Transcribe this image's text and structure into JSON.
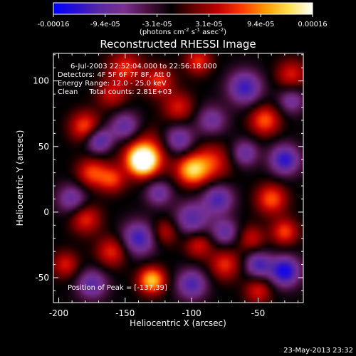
{
  "colorbar": {
    "ticks": [
      "-0.00016",
      "-9.4e-05",
      "-3.1e-05",
      "3.1e-05",
      "9.4e-05",
      "0.00016"
    ],
    "units_prefix": "(photons cm",
    "units_exp1": "-2",
    "units_mid": " s",
    "units_exp2": "-1",
    "units_mid2": " asec",
    "units_exp3": "-2",
    "units_suffix": ")",
    "stops": [
      "#0000ff",
      "#2a0fd0",
      "#5a2aa0",
      "#7a3090",
      "#4a1040",
      "#000000",
      "#6a0000",
      "#c00000",
      "#ff3a00",
      "#ff9a00",
      "#ffe050",
      "#ffffff"
    ]
  },
  "chart_data": {
    "type": "heatmap",
    "title": "Reconstructed RHESSI Image",
    "xlabel": "Heliocentric X (arcsec)",
    "ylabel": "Heliocentric Y (arcsec)",
    "xlim": [
      -204,
      -16
    ],
    "ylim": [
      -69,
      121
    ],
    "x_ticks": [
      -200,
      -150,
      -100,
      -50
    ],
    "y_ticks": [
      -50,
      0,
      50,
      100
    ],
    "blobs": [
      {
        "x": -137,
        "y": 39,
        "v": 1.0,
        "s": 7
      },
      {
        "x": -135,
        "y": 44,
        "v": 0.55,
        "s": 12
      },
      {
        "x": -100,
        "y": 32,
        "v": 0.75,
        "s": 8
      },
      {
        "x": -85,
        "y": 38,
        "v": 0.45,
        "s": 10
      },
      {
        "x": -130,
        "y": -52,
        "v": 0.8,
        "s": 7
      },
      {
        "x": -180,
        "y": 65,
        "v": 0.55,
        "s": 8
      },
      {
        "x": -175,
        "y": 30,
        "v": 0.5,
        "s": 8
      },
      {
        "x": -160,
        "y": 25,
        "v": 0.45,
        "s": 7
      },
      {
        "x": -150,
        "y": 110,
        "v": 0.45,
        "s": 9
      },
      {
        "x": -125,
        "y": 100,
        "v": 0.45,
        "s": 8
      },
      {
        "x": -95,
        "y": 115,
        "v": 0.45,
        "s": 7
      },
      {
        "x": -110,
        "y": 80,
        "v": 0.4,
        "s": 8
      },
      {
        "x": -160,
        "y": 90,
        "v": 0.35,
        "s": 8
      },
      {
        "x": -45,
        "y": 70,
        "v": 0.55,
        "s": 8
      },
      {
        "x": -25,
        "y": 105,
        "v": 0.4,
        "s": 8
      },
      {
        "x": -40,
        "y": 10,
        "v": 0.55,
        "s": 8
      },
      {
        "x": -30,
        "y": -15,
        "v": 0.5,
        "s": 7
      },
      {
        "x": -55,
        "y": -20,
        "v": 0.35,
        "s": 7
      },
      {
        "x": -75,
        "y": -40,
        "v": 0.45,
        "s": 8
      },
      {
        "x": -95,
        "y": -25,
        "v": 0.4,
        "s": 7
      },
      {
        "x": -180,
        "y": -5,
        "v": 0.45,
        "s": 8
      },
      {
        "x": -160,
        "y": -30,
        "v": 0.45,
        "s": 8
      },
      {
        "x": -195,
        "y": -40,
        "v": 0.4,
        "s": 7
      },
      {
        "x": -50,
        "y": -60,
        "v": 0.4,
        "s": 7
      },
      {
        "x": -120,
        "y": -15,
        "v": 0.35,
        "s": 7
      },
      {
        "x": -170,
        "y": 55,
        "v": -0.6,
        "s": 7
      },
      {
        "x": -150,
        "y": 65,
        "v": -0.5,
        "s": 8
      },
      {
        "x": -60,
        "y": 95,
        "v": -0.6,
        "s": 9
      },
      {
        "x": -30,
        "y": 40,
        "v": -0.65,
        "s": 8
      },
      {
        "x": -30,
        "y": -45,
        "v": -0.75,
        "s": 8
      },
      {
        "x": -50,
        "y": -40,
        "v": -0.55,
        "s": 7
      },
      {
        "x": -140,
        "y": -20,
        "v": -0.6,
        "s": 9
      },
      {
        "x": -100,
        "y": -5,
        "v": -0.5,
        "s": 9
      },
      {
        "x": -80,
        "y": 10,
        "v": -0.55,
        "s": 8
      },
      {
        "x": -110,
        "y": 55,
        "v": -0.5,
        "s": 8
      },
      {
        "x": -190,
        "y": 10,
        "v": -0.45,
        "s": 8
      },
      {
        "x": -175,
        "y": -55,
        "v": -0.5,
        "s": 8
      },
      {
        "x": -100,
        "y": -55,
        "v": -0.55,
        "s": 8
      },
      {
        "x": -125,
        "y": 15,
        "v": -0.45,
        "s": 7
      },
      {
        "x": -75,
        "y": -15,
        "v": -0.45,
        "s": 7
      },
      {
        "x": -25,
        "y": 85,
        "v": -0.4,
        "s": 7
      },
      {
        "x": -85,
        "y": 70,
        "v": -0.4,
        "s": 8
      },
      {
        "x": -60,
        "y": 45,
        "v": -0.45,
        "s": 7
      }
    ]
  },
  "info": {
    "time_range": "6-Jul-2003 22:52:04.000 to 22:56:18.000",
    "detectors": "Detectors: 4F 5F 6F 7F 8F, Att 0",
    "energy": "Energy Range: 12.0 - 25.0 keV",
    "method": "Clean     Total counts: 2.81E+03",
    "peak": "Position of Peak = [-137,39]"
  },
  "footer": {
    "date": "23-May-2013 23:32"
  }
}
